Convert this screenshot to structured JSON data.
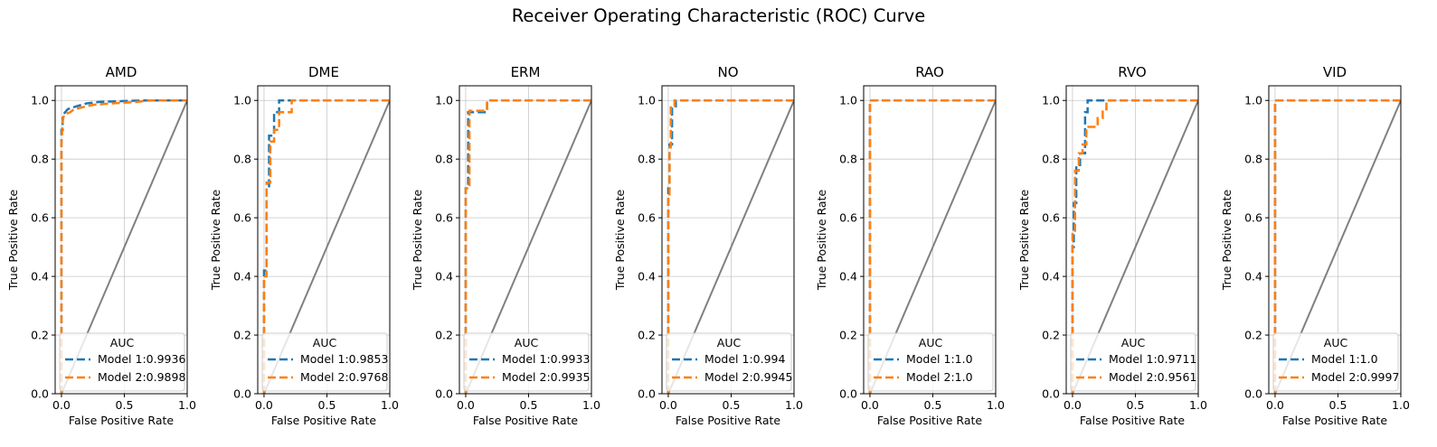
{
  "title": "Receiver Operating Characteristic (ROC) Curve",
  "colors": {
    "model1": "#1f77b4",
    "model2": "#ff7f0e",
    "diagonal": "#808080",
    "grid": "#b0b0b0"
  },
  "legend_title": "AUC",
  "chart_data": [
    {
      "type": "line",
      "title": "AMD",
      "xlabel": "False Positive Rate",
      "ylabel": "True Positive Rate",
      "xlim": [
        -0.05,
        1.0
      ],
      "ylim": [
        0.0,
        1.05
      ],
      "xticks": [
        "0.0",
        "0.5",
        "1.0"
      ],
      "yticks": [
        "0.0",
        "0.2",
        "0.4",
        "0.6",
        "0.8",
        "1.0"
      ],
      "grid": true,
      "legend_position": "lower right",
      "series": [
        {
          "name": "Model 1:0.9936",
          "style": "dashed",
          "x": [
            0,
            0,
            0.01,
            0.01,
            0.03,
            0.05,
            0.08,
            0.12,
            0.2,
            0.3,
            0.5,
            0.65,
            1.0
          ],
          "y": [
            0,
            0.9,
            0.9,
            0.95,
            0.96,
            0.97,
            0.975,
            0.98,
            0.99,
            0.995,
            0.998,
            1.0,
            1.0
          ]
        },
        {
          "name": "Model 2:0.9898",
          "style": "dashed",
          "x": [
            0,
            0,
            0.01,
            0.02,
            0.04,
            0.07,
            0.1,
            0.15,
            0.25,
            0.4,
            0.6,
            0.7,
            1.0
          ],
          "y": [
            0,
            0.85,
            0.93,
            0.95,
            0.955,
            0.96,
            0.97,
            0.975,
            0.985,
            0.99,
            0.995,
            1.0,
            1.0
          ]
        }
      ]
    },
    {
      "type": "line",
      "title": "DME",
      "xlabel": "False Positive Rate",
      "ylabel": "True Positive Rate",
      "xlim": [
        -0.05,
        1.0
      ],
      "ylim": [
        0.0,
        1.05
      ],
      "xticks": [
        "0.0",
        "0.5",
        "1.0"
      ],
      "yticks": [
        "0.0",
        "0.2",
        "0.4",
        "0.6",
        "0.8",
        "1.0"
      ],
      "grid": true,
      "legend_position": "lower right",
      "series": [
        {
          "name": "Model 1:0.9853",
          "style": "dashed",
          "x": [
            0,
            0,
            0.02,
            0.02,
            0.04,
            0.04,
            0.08,
            0.08,
            0.12,
            0.12,
            1.0
          ],
          "y": [
            0,
            0.42,
            0.42,
            0.7,
            0.7,
            0.88,
            0.88,
            0.96,
            0.96,
            1.0,
            1.0
          ]
        },
        {
          "name": "Model 2:0.9768",
          "style": "dashed",
          "x": [
            0,
            0,
            0.02,
            0.02,
            0.05,
            0.05,
            0.08,
            0.08,
            0.12,
            0.12,
            0.22,
            0.22,
            1.0
          ],
          "y": [
            0,
            0.4,
            0.4,
            0.72,
            0.72,
            0.86,
            0.86,
            0.9,
            0.9,
            0.96,
            0.96,
            1.0,
            1.0
          ]
        }
      ]
    },
    {
      "type": "line",
      "title": "ERM",
      "xlabel": "False Positive Rate",
      "ylabel": "True Positive Rate",
      "xlim": [
        -0.05,
        1.0
      ],
      "ylim": [
        0.0,
        1.05
      ],
      "xticks": [
        "0.0",
        "0.5",
        "1.0"
      ],
      "yticks": [
        "0.0",
        "0.2",
        "0.4",
        "0.6",
        "0.8",
        "1.0"
      ],
      "grid": true,
      "legend_position": "lower right",
      "series": [
        {
          "name": "Model 1:0.9933",
          "style": "dashed",
          "x": [
            0,
            0,
            0.02,
            0.02,
            0.17,
            0.17,
            1.0
          ],
          "y": [
            0,
            0.7,
            0.7,
            0.96,
            0.96,
            1.0,
            1.0
          ]
        },
        {
          "name": "Model 2:0.9935",
          "style": "dashed",
          "x": [
            0,
            0,
            0.03,
            0.03,
            0.17,
            0.17,
            1.0
          ],
          "y": [
            0,
            0.7,
            0.7,
            0.965,
            0.965,
            1.0,
            1.0
          ]
        }
      ]
    },
    {
      "type": "line",
      "title": "NO",
      "xlabel": "False Positive Rate",
      "ylabel": "True Positive Rate",
      "xlim": [
        -0.05,
        1.0
      ],
      "ylim": [
        0.0,
        1.05
      ],
      "xticks": [
        "0.0",
        "0.5",
        "1.0"
      ],
      "yticks": [
        "0.0",
        "0.2",
        "0.4",
        "0.6",
        "0.8",
        "1.0"
      ],
      "grid": true,
      "legend_position": "lower right",
      "series": [
        {
          "name": "Model 1:0.994",
          "style": "dashed",
          "x": [
            0,
            0,
            0.01,
            0.01,
            0.03,
            0.03,
            0.06,
            0.06,
            1.0
          ],
          "y": [
            0,
            0.7,
            0.7,
            0.85,
            0.85,
            0.98,
            0.98,
            1.0,
            1.0
          ]
        },
        {
          "name": "Model 2:0.9945",
          "style": "dashed",
          "x": [
            0,
            0,
            0.01,
            0.01,
            0.02,
            0.02,
            0.05,
            0.05,
            1.0
          ],
          "y": [
            0,
            0.68,
            0.68,
            0.84,
            0.84,
            0.98,
            0.98,
            1.0,
            1.0
          ]
        }
      ]
    },
    {
      "type": "line",
      "title": "RAO",
      "xlabel": "False Positive Rate",
      "ylabel": "True Positive Rate",
      "xlim": [
        -0.05,
        1.0
      ],
      "ylim": [
        0.0,
        1.05
      ],
      "xticks": [
        "0.0",
        "0.5",
        "1.0"
      ],
      "yticks": [
        "0.0",
        "0.2",
        "0.4",
        "0.6",
        "0.8",
        "1.0"
      ],
      "grid": true,
      "legend_position": "lower right",
      "series": [
        {
          "name": "Model 1:1.0",
          "style": "dashed",
          "x": [
            0,
            0,
            1.0
          ],
          "y": [
            0,
            1.0,
            1.0
          ]
        },
        {
          "name": "Model 2:1.0",
          "style": "dashed",
          "x": [
            0,
            0,
            1.0
          ],
          "y": [
            0,
            1.0,
            1.0
          ]
        }
      ]
    },
    {
      "type": "line",
      "title": "RVO",
      "xlabel": "False Positive Rate",
      "ylabel": "True Positive Rate",
      "xlim": [
        -0.05,
        1.0
      ],
      "ylim": [
        0.0,
        1.05
      ],
      "xticks": [
        "0.0",
        "0.5",
        "1.0"
      ],
      "yticks": [
        "0.0",
        "0.2",
        "0.4",
        "0.6",
        "0.8",
        "1.0"
      ],
      "grid": true,
      "legend_position": "lower right",
      "series": [
        {
          "name": "Model 1:0.9711",
          "style": "dashed",
          "x": [
            0,
            0,
            0.01,
            0.01,
            0.03,
            0.03,
            0.06,
            0.06,
            0.1,
            0.1,
            0.12,
            0.12,
            1.0
          ],
          "y": [
            0,
            0.5,
            0.5,
            0.65,
            0.65,
            0.78,
            0.78,
            0.82,
            0.82,
            0.96,
            0.96,
            1.0,
            1.0
          ]
        },
        {
          "name": "Model 2:0.9561",
          "style": "dashed",
          "x": [
            0,
            0,
            0.02,
            0.02,
            0.05,
            0.05,
            0.08,
            0.08,
            0.11,
            0.11,
            0.2,
            0.2,
            0.24,
            0.24,
            0.27,
            0.27,
            1.0
          ],
          "y": [
            0,
            0.55,
            0.55,
            0.76,
            0.76,
            0.82,
            0.82,
            0.85,
            0.85,
            0.91,
            0.91,
            0.94,
            0.94,
            0.97,
            0.97,
            1.0,
            1.0
          ]
        }
      ]
    },
    {
      "type": "line",
      "title": "VID",
      "xlabel": "False Positive Rate",
      "ylabel": "True Positive Rate",
      "xlim": [
        -0.05,
        1.0
      ],
      "ylim": [
        0.0,
        1.05
      ],
      "xticks": [
        "0.0",
        "0.5",
        "1.0"
      ],
      "yticks": [
        "0.0",
        "0.2",
        "0.4",
        "0.6",
        "0.8",
        "1.0"
      ],
      "grid": true,
      "legend_position": "lower right",
      "series": [
        {
          "name": "Model 1:1.0",
          "style": "dashed",
          "x": [
            0,
            0,
            1.0
          ],
          "y": [
            0,
            1.0,
            1.0
          ]
        },
        {
          "name": "Model 2:0.9997",
          "style": "dashed",
          "x": [
            0,
            0,
            0.01,
            0.01,
            1.0
          ],
          "y": [
            0,
            0.99,
            0.99,
            1.0,
            1.0
          ]
        }
      ]
    }
  ]
}
